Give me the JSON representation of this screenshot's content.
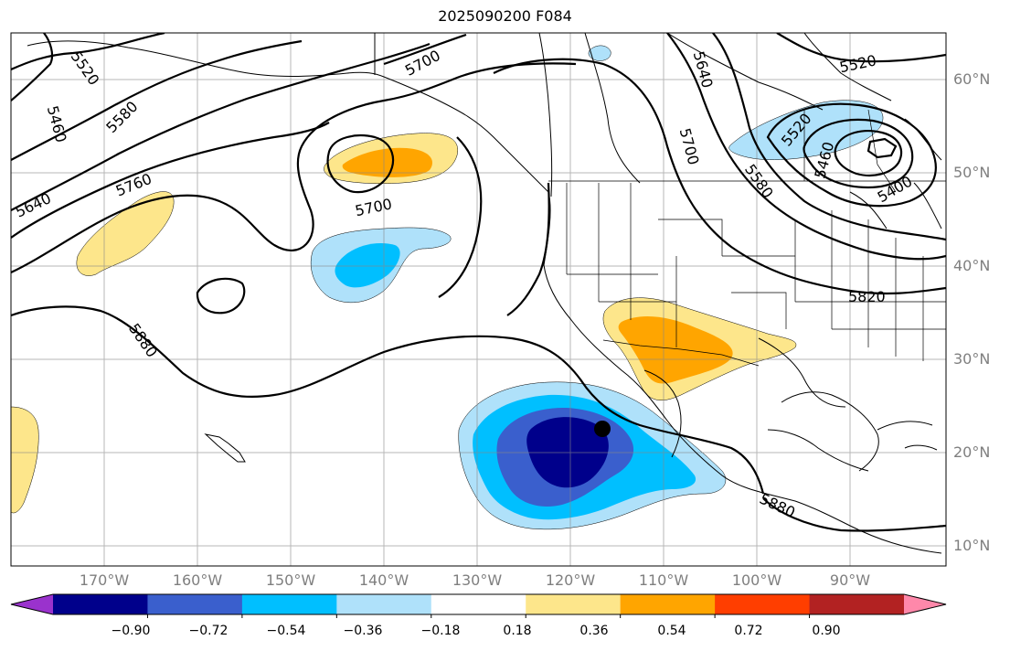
{
  "title": "2025090200 F084",
  "lat_labels": [
    "60°N",
    "50°N",
    "40°N",
    "30°N",
    "20°N",
    "10°N"
  ],
  "lon_labels": [
    "170°W",
    "160°W",
    "150°W",
    "140°W",
    "130°W",
    "120°W",
    "110°W",
    "100°W",
    "90°W"
  ],
  "contour_labels": [
    "5520",
    "5580",
    "5460",
    "5640",
    "5760",
    "5700",
    "5700",
    "5640",
    "5700",
    "5580",
    "5520",
    "5460",
    "5400",
    "5520",
    "5820",
    "5880",
    "5880"
  ],
  "colorbar": {
    "ticks": [
      "−0.90",
      "−0.72",
      "−0.54",
      "−0.36",
      "−0.18",
      "0.18",
      "0.36",
      "0.54",
      "0.72",
      "0.90"
    ],
    "colors": [
      "#9a32cd",
      "#00008b",
      "#3a5fcd",
      "#00bfff",
      "#afe1fa",
      "#ffffff",
      "#fde68b",
      "#ffa500",
      "#ff3e00",
      "#b22222",
      "#ff88aa"
    ]
  },
  "marker": {
    "label": "storm-center",
    "lat": 22.5,
    "lon": -116.5
  }
}
